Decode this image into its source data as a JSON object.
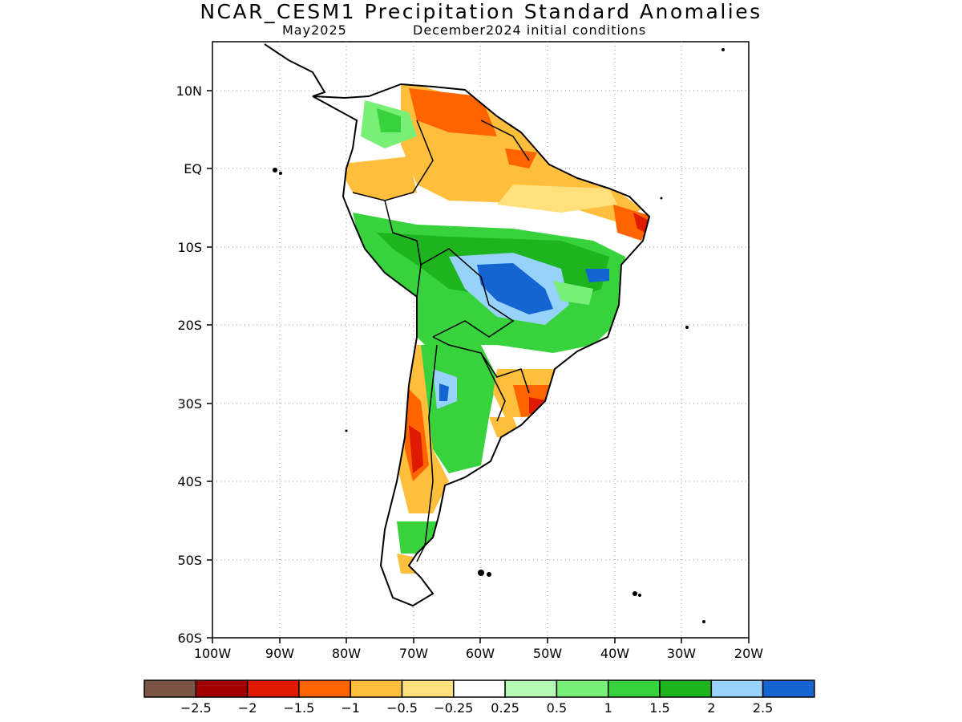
{
  "title": "NCAR_CESM1 Precipitation Standard Anomalies",
  "valid_month": "May2025",
  "init_conditions": "December2024 initial conditions",
  "map": {
    "region": "South America",
    "lat_labels": [
      "10N",
      "EQ",
      "10S",
      "20S",
      "30S",
      "40S",
      "50S",
      "60S"
    ],
    "lon_labels": [
      "100W",
      "90W",
      "80W",
      "70W",
      "60W",
      "50W",
      "40W",
      "30W",
      "20W"
    ]
  },
  "colorbar": {
    "labels": [
      "−2.5",
      "−2",
      "−1.5",
      "−1",
      "−0.5",
      "−0.25",
      "0.25",
      "0.5",
      "1",
      "1.5",
      "2",
      "2.5"
    ],
    "colors": [
      "#7b5446",
      "#a20000",
      "#df1a00",
      "#ff6400",
      "#ffbe3c",
      "#ffe07a",
      "#ffffff",
      "#b4fab4",
      "#78f078",
      "#37d23c",
      "#1eb41e",
      "#96d2fa",
      "#1464d2"
    ]
  }
}
